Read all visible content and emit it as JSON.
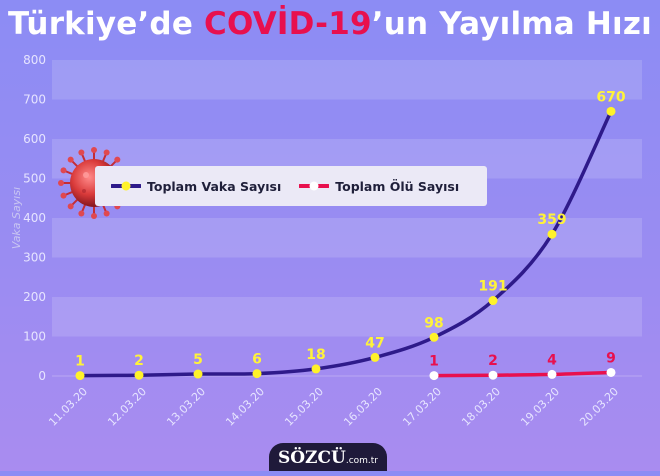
{
  "title": {
    "prefix": "Türkiye’de ",
    "highlight": "COVİD-19",
    "suffix": "’un Yayılma Hızı"
  },
  "brand": {
    "name": "SÖZCÜ",
    "domain": ".com.tr"
  },
  "colors": {
    "cases": "#2e1a8a",
    "deaths": "#e8104e",
    "case_marker": "#fff22a",
    "death_marker": "#ffffff",
    "label_cases": "#fff33a",
    "label_deaths": "#e8104e"
  },
  "chart_data": {
    "type": "line",
    "title": "Türkiye’de COVİD-19’un Yayılma Hızı",
    "ylabel": "Vaka Sayısı",
    "xlabel": "",
    "ylim": [
      0,
      800
    ],
    "yticks": [
      0,
      100,
      200,
      300,
      400,
      500,
      600,
      700,
      800
    ],
    "categories": [
      "11.03.20",
      "12.03.20",
      "13.03.20",
      "14.03.20",
      "15.03.20",
      "16.03.20",
      "17.03.20",
      "18.03.20",
      "19.03.20",
      "20.03.20"
    ],
    "legend_position": "top-left",
    "grid": "horizontal bands",
    "series": [
      {
        "name": "Toplam Vaka Sayısı",
        "values": [
          1,
          2,
          5,
          6,
          18,
          47,
          98,
          191,
          359,
          670
        ]
      },
      {
        "name": "Toplam Ölü Sayısı",
        "values": [
          null,
          null,
          null,
          null,
          null,
          null,
          1,
          2,
          4,
          9
        ]
      }
    ]
  }
}
